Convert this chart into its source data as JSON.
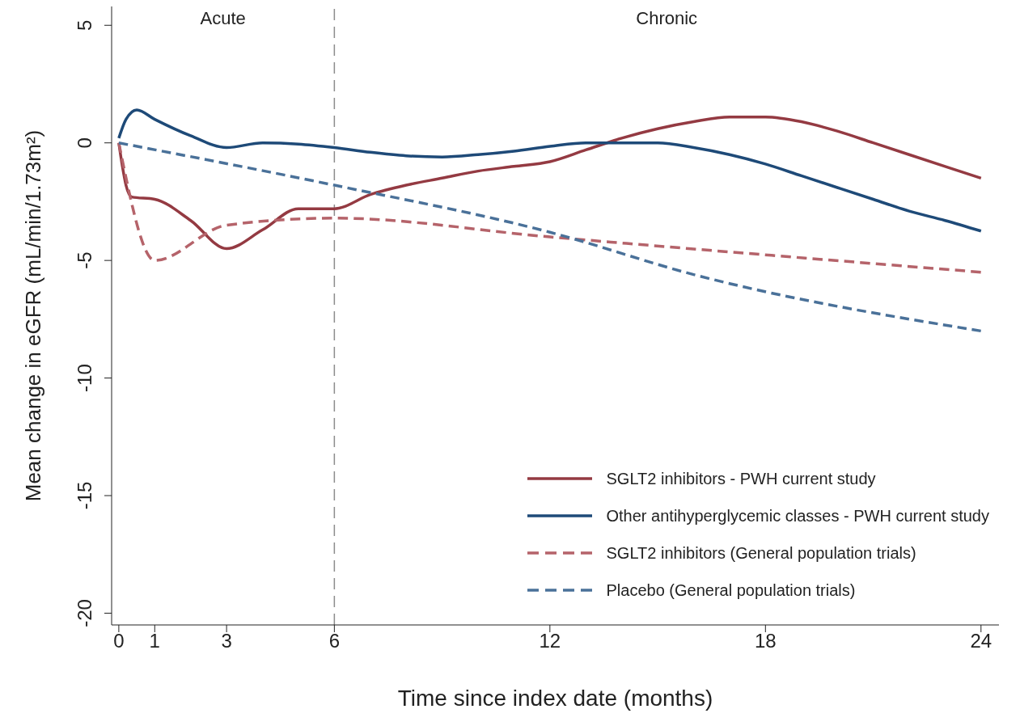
{
  "chart_data": {
    "type": "line",
    "xlabel": "Time since index date (months)",
    "ylabel": "Mean change in eGFR (mL/min/1.73m²)",
    "xlim": [
      -0.2,
      24.5
    ],
    "xticks": [
      0,
      1,
      3,
      6,
      12,
      18,
      24
    ],
    "ylim": [
      -20.5,
      5.8
    ],
    "yticks": [
      -20,
      -15,
      -10,
      -5,
      0,
      5
    ],
    "legend": "bottom right",
    "ref_lines": [
      {
        "axis": "x",
        "value": 6,
        "color": "#8c8c8c",
        "line_style": "dashed"
      }
    ],
    "annotations": [
      "Acute",
      "Chronic"
    ],
    "series": [
      {
        "name": "SGLT2 inhibitors - PWH current study",
        "color": "#943a42",
        "line_style": "solid",
        "x": [
          0,
          0.1,
          0.2,
          0.36,
          1,
          2,
          3,
          4,
          5,
          6,
          7,
          8,
          9,
          10,
          11,
          12,
          13,
          14,
          15,
          16,
          17,
          18,
          19,
          20,
          21,
          22,
          23,
          24
        ],
        "values": [
          0,
          -1.0,
          -1.8,
          -2.3,
          -2.4,
          -3.3,
          -4.5,
          -3.7,
          -2.8,
          -2.8,
          -2.2,
          -1.8,
          -1.5,
          -1.2,
          -1.0,
          -0.8,
          -0.3,
          0.2,
          0.6,
          0.9,
          1.1,
          1.1,
          0.9,
          0.5,
          0.0,
          -0.5,
          -1.0,
          -1.5
        ]
      },
      {
        "name": "Other antihyperglycemic classes - PWH current study",
        "color": "#1e4a78",
        "line_style": "solid",
        "x": [
          0,
          0.2,
          0.5,
          1,
          2,
          3,
          4,
          5,
          6,
          7,
          8,
          9,
          10,
          11,
          12,
          13,
          14,
          15,
          16,
          17,
          18,
          19,
          20,
          21,
          22,
          23,
          24
        ],
        "values": [
          0.2,
          1.0,
          1.4,
          1.0,
          0.3,
          -0.2,
          0.0,
          -0.05,
          -0.2,
          -0.4,
          -0.55,
          -0.6,
          -0.5,
          -0.35,
          -0.15,
          0.0,
          0.0,
          0.0,
          -0.2,
          -0.5,
          -0.9,
          -1.4,
          -1.9,
          -2.4,
          -2.9,
          -3.3,
          -3.75
        ]
      },
      {
        "name": "SGLT2 inhibitors (General population trials)",
        "color": "#b5636a",
        "line_style": "dashed",
        "x": [
          0,
          1,
          3,
          6,
          12,
          24
        ],
        "values": [
          0,
          -5,
          -3.5,
          -3.2,
          -4.0,
          -5.5
        ]
      },
      {
        "name": "Placebo (General population trials)",
        "color": "#4a7199",
        "line_style": "dashed",
        "x": [
          0,
          6,
          12,
          16,
          24
        ],
        "values": [
          0,
          -1.8,
          -3.8,
          -5.6,
          -8.0
        ]
      }
    ]
  }
}
